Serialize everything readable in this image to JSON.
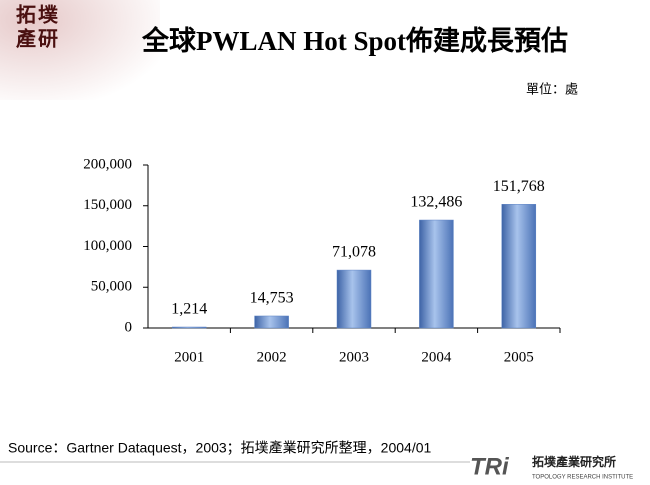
{
  "chart_data": {
    "type": "bar",
    "title": "全球PWLAN Hot Spot佈建成長預估",
    "unit_label": "單位：處",
    "categories": [
      "2001",
      "2002",
      "2003",
      "2004",
      "2005"
    ],
    "values": [
      1214,
      14753,
      71078,
      132486,
      151768
    ],
    "value_labels": [
      "1,214",
      "14,753",
      "71,078",
      "132,486",
      "151,768"
    ],
    "color": "#5b82c4",
    "ylim": [
      0,
      200000
    ],
    "yticks": [
      0,
      {
        "value": 50000,
        "label": "50,000"
      },
      {
        "value": 100000,
        "label": "100,000"
      },
      {
        "value": 150000,
        "label": "150,000"
      },
      {
        "value": 200000,
        "label": "200,000"
      }
    ],
    "grid": false
  },
  "source": "Source：Gartner Dataquest，2003；拓墣產業研究所整理，2004/01",
  "logo_top": [
    "拓",
    "墣",
    "產",
    "研"
  ],
  "logo_bottom": {
    "mark": "TRi",
    "name": "拓墣產業研究所",
    "english": "TOPOLOGY RESEARCH INSTITUTE"
  }
}
